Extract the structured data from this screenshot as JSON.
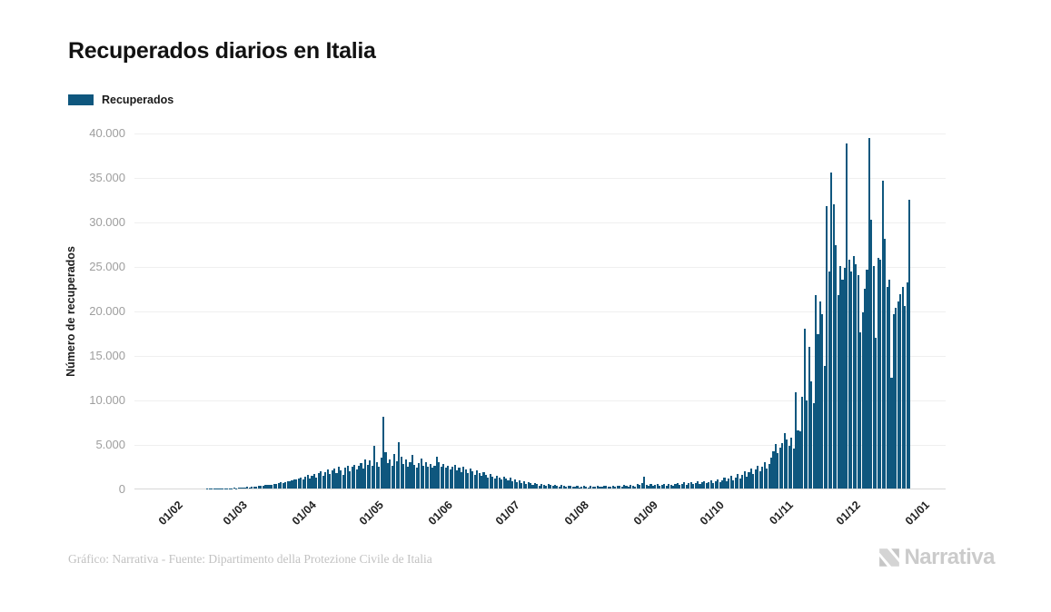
{
  "header": {
    "title": "Recuperados diarios en Italia"
  },
  "legend": {
    "items": [
      {
        "label": "Recuperados",
        "color": "#0F577E"
      }
    ]
  },
  "footer": {
    "credit": "Gráfico: Narrativa - Fuente: Dipartimento della Protezione Civile de Italia",
    "brand": "Narrativa"
  },
  "chart_data": {
    "type": "bar",
    "title": "Recuperados diarios en Italia",
    "xlabel": "",
    "ylabel": "Número de recuperados",
    "ylim": [
      0,
      40000
    ],
    "ytick_step": 5000,
    "ytick_labels": [
      "0",
      "5.000",
      "10.000",
      "15.000",
      "20.000",
      "25.000",
      "30.000",
      "35.000",
      "40.000"
    ],
    "grid": true,
    "legend_position": "top-left",
    "series_name": "Recuperados",
    "bar_color": "#0F577E",
    "axis_span_days": 335,
    "x_months": [
      {
        "label": "01/02",
        "day": 0
      },
      {
        "label": "01/03",
        "day": 29
      },
      {
        "label": "01/04",
        "day": 60
      },
      {
        "label": "01/05",
        "day": 90
      },
      {
        "label": "01/06",
        "day": 121
      },
      {
        "label": "01/07",
        "day": 151
      },
      {
        "label": "01/08",
        "day": 182
      },
      {
        "label": "01/09",
        "day": 213
      },
      {
        "label": "01/10",
        "day": 243
      },
      {
        "label": "01/11",
        "day": 274
      },
      {
        "label": "01/12",
        "day": 304
      },
      {
        "label": "01/01",
        "day": 335
      }
    ],
    "values": [
      0,
      0,
      0,
      0,
      0,
      1,
      1,
      0,
      1,
      2,
      2,
      3,
      2,
      4,
      3,
      5,
      6,
      4,
      8,
      10,
      9,
      12,
      15,
      14,
      18,
      22,
      25,
      30,
      35,
      45,
      60,
      50,
      80,
      100,
      90,
      130,
      160,
      140,
      190,
      230,
      210,
      270,
      320,
      280,
      370,
      420,
      380,
      460,
      550,
      500,
      600,
      680,
      620,
      750,
      850,
      800,
      950,
      1050,
      980,
      1100,
      1200,
      1000,
      1300,
      1500,
      1100,
      1400,
      1600,
      1200,
      1700,
      1900,
      1400,
      1800,
      2100,
      1600,
      2000,
      2200,
      1700,
      2500,
      2000,
      1500,
      2300,
      2600,
      1900,
      2400,
      2700,
      2100,
      2600,
      2900,
      2200,
      3300,
      2700,
      3200,
      2600,
      4800,
      3000,
      2400,
      3500,
      8100,
      4100,
      2900,
      3300,
      2600,
      3900,
      3100,
      5200,
      3600,
      2800,
      3300,
      2500,
      3000,
      3800,
      2700,
      2300,
      2900,
      3400,
      2600,
      3000,
      2400,
      2800,
      2300,
      2600,
      3600,
      3000,
      2500,
      2800,
      2300,
      2600,
      2100,
      2400,
      2700,
      2000,
      2300,
      1800,
      2400,
      2100,
      1700,
      2200,
      1900,
      1500,
      2000,
      1700,
      1400,
      1800,
      1500,
      1200,
      1600,
      1300,
      1100,
      1400,
      1200,
      1000,
      1300,
      1100,
      900,
      1200,
      800,
      1000,
      700,
      900,
      600,
      800,
      500,
      700,
      600,
      400,
      600,
      500,
      350,
      550,
      450,
      300,
      500,
      400,
      300,
      450,
      350,
      250,
      400,
      300,
      250,
      350,
      300,
      250,
      200,
      300,
      150,
      250,
      350,
      200,
      150,
      300,
      250,
      180,
      350,
      220,
      160,
      280,
      320,
      190,
      240,
      300,
      200,
      350,
      260,
      180,
      400,
      300,
      220,
      450,
      350,
      250,
      500,
      400,
      600,
      1300,
      400,
      300,
      500,
      350,
      400,
      550,
      300,
      450,
      500,
      350,
      550,
      400,
      300,
      500,
      600,
      400,
      550,
      700,
      450,
      600,
      750,
      500,
      650,
      800,
      550,
      700,
      850,
      600,
      700,
      900,
      600,
      800,
      1000,
      700,
      900,
      1200,
      800,
      1100,
      1400,
      900,
      1200,
      1600,
      1100,
      1500,
      1900,
      1300,
      1800,
      2200,
      1600,
      2100,
      2600,
      1900,
      2500,
      3000,
      2200,
      2800,
      3500,
      4200,
      5000,
      4000,
      4600,
      5100,
      6200,
      5500,
      4800,
      5700,
      4500,
      10800,
      6500,
      6400,
      10300,
      18000,
      9900,
      15900,
      12000,
      9600,
      21700,
      17300,
      21000,
      19600,
      13800,
      31700,
      24400,
      35500,
      31900,
      27300,
      21700,
      25000,
      23500,
      24800,
      38800,
      25700,
      24400,
      26100,
      25200,
      24000,
      17600,
      19800,
      22500,
      24600,
      39400,
      30200,
      25000,
      16900,
      25900,
      25700,
      34600,
      28100,
      22700,
      23500,
      12500,
      19600,
      20300,
      21000,
      21800,
      22700,
      20500,
      23200,
      32400
    ]
  }
}
